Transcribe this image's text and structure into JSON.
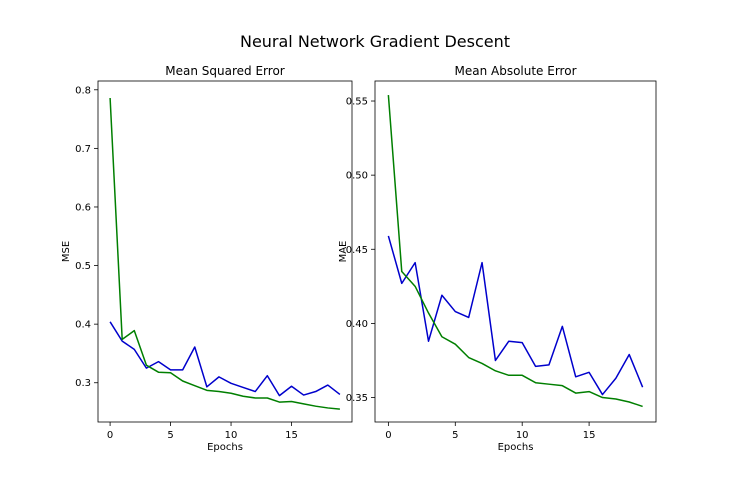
{
  "figure": {
    "title": "Neural Network Gradient Descent"
  },
  "chart_data": [
    {
      "type": "line",
      "title": "Mean Squared Error",
      "xlabel": "Epochs",
      "ylabel": "MSE",
      "x": [
        0,
        1,
        2,
        3,
        4,
        5,
        6,
        7,
        8,
        9,
        10,
        11,
        12,
        13,
        14,
        15,
        16,
        17,
        18,
        19
      ],
      "xlim": [
        -1,
        20
      ],
      "ylim": [
        0.233,
        0.815
      ],
      "xticks": [
        0,
        5,
        10,
        15
      ],
      "yticks": [
        0.3,
        0.4,
        0.5,
        0.6,
        0.7,
        0.8
      ],
      "ytick_labels": [
        "0.3",
        "0.4",
        "0.5",
        "0.6",
        "0.7",
        "0.8"
      ],
      "grid": false,
      "series": [
        {
          "color": "#0000cc",
          "values": [
            0.404,
            0.371,
            0.357,
            0.325,
            0.336,
            0.322,
            0.322,
            0.361,
            0.293,
            0.31,
            0.299,
            0.292,
            0.285,
            0.312,
            0.278,
            0.294,
            0.279,
            0.285,
            0.296,
            0.28
          ]
        },
        {
          "color": "#007f00",
          "values": [
            0.786,
            0.374,
            0.389,
            0.33,
            0.318,
            0.317,
            0.303,
            0.295,
            0.287,
            0.285,
            0.282,
            0.277,
            0.274,
            0.274,
            0.267,
            0.268,
            0.264,
            0.26,
            0.257,
            0.255
          ]
        }
      ]
    },
    {
      "type": "line",
      "title": "Mean Absolute Error",
      "xlabel": "Epochs",
      "ylabel": "MAE",
      "x": [
        0,
        1,
        2,
        3,
        4,
        5,
        6,
        7,
        8,
        9,
        10,
        11,
        12,
        13,
        14,
        15,
        16,
        17,
        18,
        19
      ],
      "xlim": [
        -1,
        20
      ],
      "ylim": [
        0.3335,
        0.5635
      ],
      "xticks": [
        0,
        5,
        10,
        15
      ],
      "yticks": [
        0.35,
        0.4,
        0.45,
        0.5,
        0.55
      ],
      "ytick_labels": [
        "0.35",
        "0.40",
        "0.45",
        "0.50",
        "0.55"
      ],
      "grid": false,
      "series": [
        {
          "color": "#0000cc",
          "values": [
            0.459,
            0.427,
            0.441,
            0.388,
            0.419,
            0.408,
            0.404,
            0.441,
            0.375,
            0.388,
            0.387,
            0.371,
            0.372,
            0.398,
            0.364,
            0.367,
            0.352,
            0.363,
            0.379,
            0.357
          ]
        },
        {
          "color": "#007f00",
          "values": [
            0.554,
            0.435,
            0.425,
            0.407,
            0.391,
            0.386,
            0.377,
            0.373,
            0.368,
            0.365,
            0.365,
            0.36,
            0.359,
            0.358,
            0.353,
            0.354,
            0.35,
            0.349,
            0.347,
            0.344
          ]
        }
      ]
    }
  ]
}
